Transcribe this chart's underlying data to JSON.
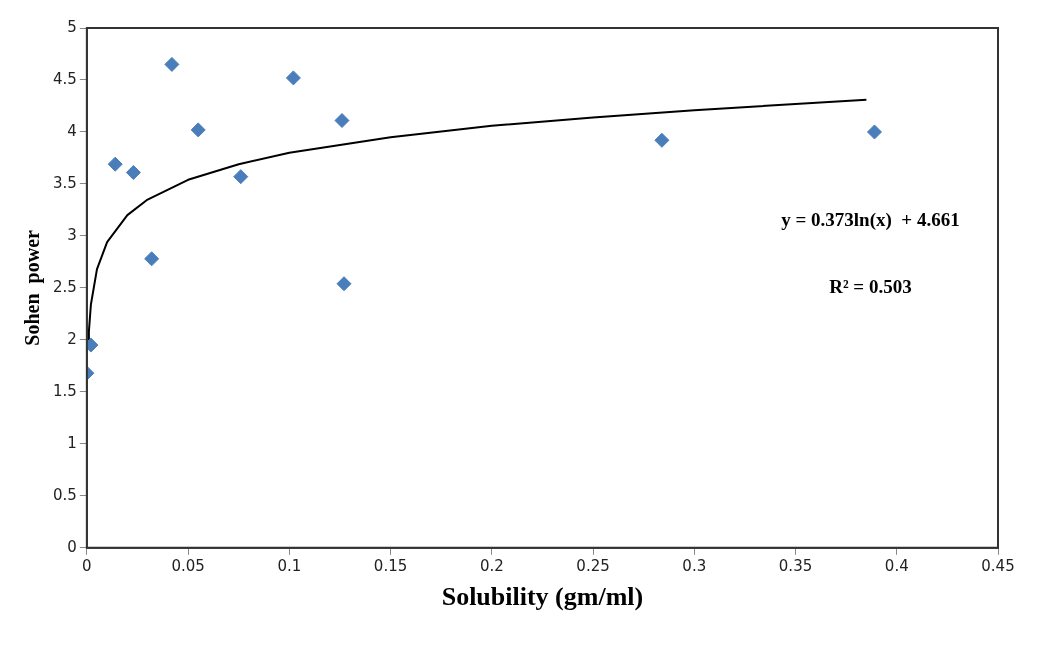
{
  "chart_data": {
    "type": "scatter",
    "xlabel": "Solubility (gm/ml)",
    "ylabel": "Sohen  power",
    "series": [
      {
        "type": "scatter",
        "color": "#4a7ebb",
        "marker": "diamond",
        "x": [
          0,
          0.002,
          0.014,
          0.023,
          0.032,
          0.042,
          0.055,
          0.076,
          0.102,
          0.126,
          0.127,
          0.284,
          0.389
        ],
        "values": [
          1.68,
          1.95,
          3.69,
          3.61,
          2.78,
          4.65,
          4.02,
          3.57,
          4.52,
          4.11,
          2.54,
          3.92,
          4.0
        ]
      },
      {
        "type": "line",
        "color": "#000000",
        "marker": "none",
        "line_style": "solid",
        "x": [
          0.0007,
          0.001,
          0.002,
          0.005,
          0.01,
          0.02,
          0.03,
          0.05,
          0.075,
          0.1,
          0.15,
          0.2,
          0.25,
          0.3,
          0.385
        ],
        "values": [
          1.95,
          2.08,
          2.34,
          2.68,
          2.94,
          3.2,
          3.35,
          3.54,
          3.69,
          3.8,
          3.95,
          4.06,
          4.14,
          4.21,
          4.31
        ]
      }
    ],
    "xlim": [
      0,
      0.45
    ],
    "xticks": [
      0,
      0.05,
      0.1,
      0.15,
      0.2,
      0.25,
      0.3,
      0.35,
      0.4,
      0.45
    ],
    "ylim": [
      0,
      5
    ],
    "yticks": [
      0,
      0.5,
      1,
      1.5,
      2,
      2.5,
      3,
      3.5,
      4,
      4.5,
      5
    ],
    "grid": false,
    "legend": false,
    "annotations": [
      "y = 0.373ln(x)  + 4.661",
      "R² = 0.503"
    ]
  }
}
